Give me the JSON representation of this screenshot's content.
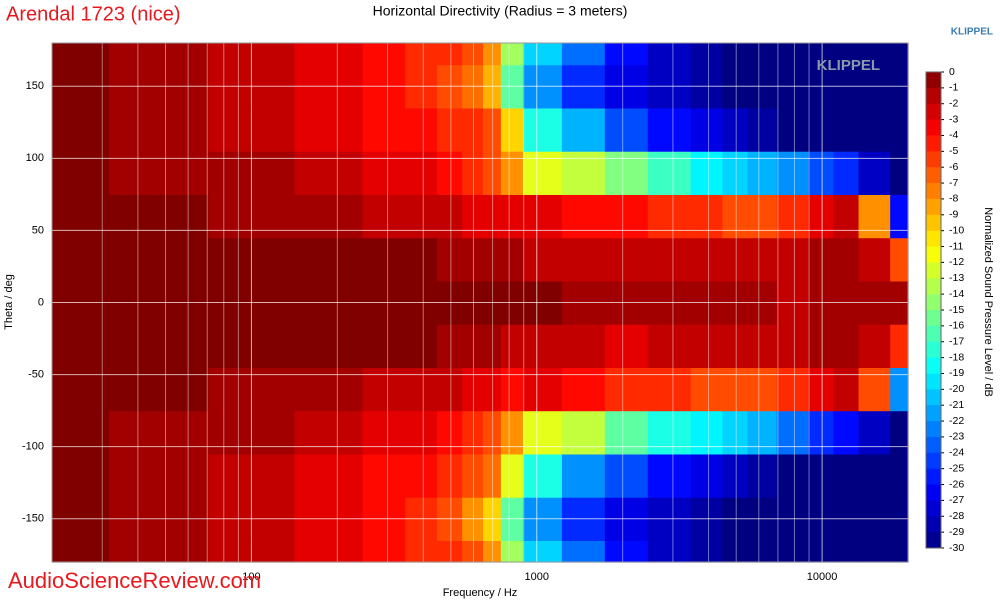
{
  "chart_data": {
    "type": "heatmap",
    "title": "Horizontal Directivity (Radius = 3 meters)",
    "source_label": "Arendal 1723 (nice)",
    "brand": "KLIPPEL",
    "logo": "KLIPPEL",
    "watermark": "AudioScienceReview.com",
    "x_label": "Frequency / Hz",
    "y_label": "Theta / deg",
    "colorbar_label": "Normalized Sound Pressure Level / dB",
    "x_log": true,
    "grid": true,
    "colormap": "jet",
    "xlim": [
      20,
      20000
    ],
    "ylim": [
      -180,
      180
    ],
    "xticks": [
      100,
      1000,
      10000
    ],
    "xticks_minor": [
      20,
      30,
      40,
      50,
      60,
      70,
      80,
      90,
      200,
      300,
      400,
      500,
      600,
      700,
      800,
      900,
      2000,
      3000,
      4000,
      5000,
      6000,
      7000,
      8000,
      9000
    ],
    "yticks": [
      -150,
      -100,
      -50,
      0,
      50,
      100,
      150
    ],
    "clim": [
      -30,
      0
    ],
    "colorbar_ticks": [
      0,
      -1,
      -2,
      -3,
      -4,
      -5,
      -6,
      -7,
      -8,
      -9,
      -10,
      -11,
      -12,
      -13,
      -14,
      -15,
      -16,
      -17,
      -18,
      -19,
      -20,
      -21,
      -22,
      -23,
      -24,
      -25,
      -26,
      -27,
      -28,
      -29,
      -30
    ],
    "x": [
      20,
      50,
      100,
      200,
      300,
      400,
      500,
      600,
      700,
      800,
      1000,
      1500,
      2000,
      3000,
      4000,
      5000,
      6000,
      8000,
      10000,
      12000,
      15000,
      20000
    ],
    "y": [
      -180,
      -150,
      -120,
      -90,
      -60,
      -30,
      0,
      30,
      60,
      90,
      120,
      150,
      180
    ],
    "z": [
      [
        0,
        -1,
        -2,
        -3,
        -4,
        -5,
        -5,
        -6,
        -8,
        -14,
        -20,
        -23,
        -26,
        -28,
        -29,
        -30,
        -30,
        -30,
        -30,
        -30,
        -30,
        -30
      ],
      [
        0,
        -1,
        -2,
        -3,
        -4,
        -5,
        -6,
        -8,
        -10,
        -16,
        -22,
        -25,
        -27,
        -28,
        -29,
        -30,
        -30,
        -30,
        -30,
        -30,
        -30,
        -30
      ],
      [
        0,
        -1,
        -2,
        -3,
        -4,
        -4,
        -5,
        -6,
        -7,
        -12,
        -18,
        -22,
        -24,
        -26,
        -27,
        -28,
        -29,
        -30,
        -30,
        -30,
        -30,
        -30
      ],
      [
        0,
        -1,
        -1,
        -2,
        -3,
        -3,
        -4,
        -5,
        -6,
        -8,
        -12,
        -13,
        -16,
        -18,
        -19,
        -20,
        -21,
        -23,
        -25,
        -26,
        -28,
        -30
      ],
      [
        0,
        0,
        -1,
        -1,
        -2,
        -2,
        -2,
        -3,
        -3,
        -4,
        -3,
        -4,
        -5,
        -5,
        -6,
        -6,
        -6,
        -5,
        -3,
        -2,
        -6,
        -22
      ],
      [
        0,
        0,
        0,
        0,
        0,
        0,
        -1,
        -1,
        -1,
        -2,
        -2,
        -2,
        -3,
        -2,
        -2,
        -2,
        -2,
        -2,
        -1,
        -1,
        -2,
        -5
      ],
      [
        0,
        0,
        0,
        0,
        0,
        0,
        0,
        0,
        0,
        0,
        0,
        -1,
        -1,
        -1,
        -1,
        -1,
        -1,
        -2,
        -1,
        -1,
        -1,
        -1
      ],
      [
        0,
        0,
        0,
        0,
        0,
        0,
        -1,
        -1,
        -1,
        -1,
        -2,
        -2,
        -2,
        -2,
        -2,
        -2,
        -2,
        -2,
        -1,
        -1,
        -2,
        -6
      ],
      [
        0,
        0,
        -1,
        -1,
        -2,
        -2,
        -2,
        -3,
        -3,
        -3,
        -3,
        -4,
        -4,
        -5,
        -5,
        -6,
        -6,
        -5,
        -3,
        -2,
        -8,
        -26
      ],
      [
        0,
        -1,
        -1,
        -2,
        -3,
        -3,
        -4,
        -5,
        -6,
        -8,
        -12,
        -13,
        -15,
        -17,
        -19,
        -20,
        -21,
        -22,
        -24,
        -25,
        -28,
        -30
      ],
      [
        0,
        -1,
        -2,
        -3,
        -4,
        -4,
        -5,
        -5,
        -6,
        -10,
        -18,
        -21,
        -24,
        -26,
        -27,
        -28,
        -29,
        -30,
        -30,
        -30,
        -30,
        -30
      ],
      [
        0,
        -1,
        -2,
        -3,
        -4,
        -5,
        -6,
        -7,
        -9,
        -16,
        -22,
        -25,
        -27,
        -28,
        -29,
        -30,
        -30,
        -30,
        -30,
        -30,
        -30,
        -30
      ],
      [
        0,
        -1,
        -2,
        -3,
        -4,
        -5,
        -5,
        -6,
        -8,
        -14,
        -20,
        -23,
        -26,
        -28,
        -29,
        -30,
        -30,
        -30,
        -30,
        -30,
        -30,
        -30
      ]
    ]
  }
}
